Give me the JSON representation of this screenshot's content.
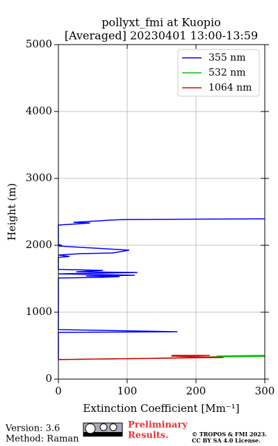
{
  "chart_data": {
    "type": "line",
    "title": "pollyxt_fmi at Kuopio",
    "subtitle": "[Averaged] 20230401 13:00-13:59",
    "xlabel": "Extinction Coefficient [Mm⁻¹]",
    "ylabel": "Height (m)",
    "xlim": [
      0,
      300
    ],
    "xticks": [
      0,
      100,
      200,
      300
    ],
    "ylim": [
      0,
      5000
    ],
    "yticks": [
      0,
      1000,
      2000,
      3000,
      4000,
      5000
    ],
    "grid": true,
    "legend": "upper right",
    "series": [
      {
        "name": "355 nm",
        "color": "#0000ff",
        "x": [
          300,
          97,
          72,
          59,
          22,
          46,
          31,
          0,
          0,
          5,
          0,
          103,
          79,
          31,
          0,
          16,
          0,
          0,
          65,
          26,
          115,
          0,
          111,
          40,
          89,
          62,
          0,
          0,
          173,
          0,
          0
        ],
        "y": [
          2396,
          2385,
          2375,
          2365,
          2344,
          2333,
          2323,
          2302,
          2010,
          2000,
          1990,
          1927,
          1885,
          1875,
          1854,
          1833,
          1820,
          1640,
          1625,
          1604,
          1594,
          1573,
          1552,
          1542,
          1531,
          1521,
          1510,
          740,
          708,
          698,
          300
        ]
      },
      {
        "name": "532 nm",
        "color": "#00bb00",
        "x": [
          0,
          150,
          225,
          300,
          230,
          300
        ],
        "y": [
          292,
          313,
          333,
          340,
          344,
          354
        ]
      },
      {
        "name": "1064 nm",
        "color": "#dd0000",
        "x": [
          0,
          77,
          160,
          240,
          164,
          220,
          165
        ],
        "y": [
          292,
          302,
          313,
          323,
          344,
          354,
          354
        ]
      }
    ]
  },
  "footer": {
    "version": "Version: 3.6",
    "method": "Method: Raman",
    "preliminary": [
      "Preliminary",
      "Results."
    ],
    "copyright": [
      "© TROPOS & FMI 2023.",
      "CC BY SA 4.0 License."
    ]
  }
}
